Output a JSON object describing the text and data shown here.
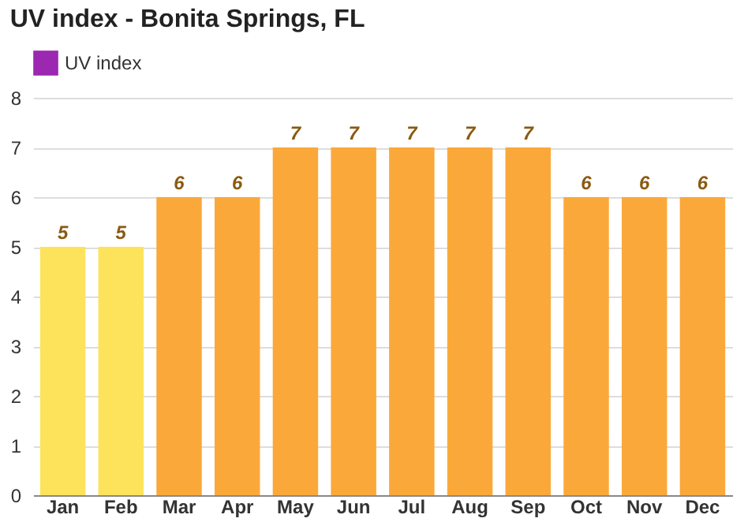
{
  "chart_data": {
    "type": "bar",
    "title": "UV index - Bonita Springs, FL",
    "categories": [
      "Jan",
      "Feb",
      "Mar",
      "Apr",
      "May",
      "Jun",
      "Jul",
      "Aug",
      "Sep",
      "Oct",
      "Nov",
      "Dec"
    ],
    "series": [
      {
        "name": "UV index",
        "color": "#9c27b0",
        "colors": [
          "#fde35c",
          "#fde35c",
          "#fba83a",
          "#fba83a",
          "#fba83a",
          "#fba83a",
          "#fba83a",
          "#fba83a",
          "#fba83a",
          "#fba83a",
          "#fba83a",
          "#fba83a"
        ],
        "values": [
          5,
          5,
          6,
          6,
          7,
          7,
          7,
          7,
          7,
          6,
          6,
          6
        ]
      }
    ],
    "ylim": [
      0,
      8
    ],
    "yticks": [
      0,
      1,
      2,
      3,
      4,
      5,
      6,
      7,
      8
    ],
    "grid": "y",
    "legend": "top left",
    "data_labels": true
  }
}
